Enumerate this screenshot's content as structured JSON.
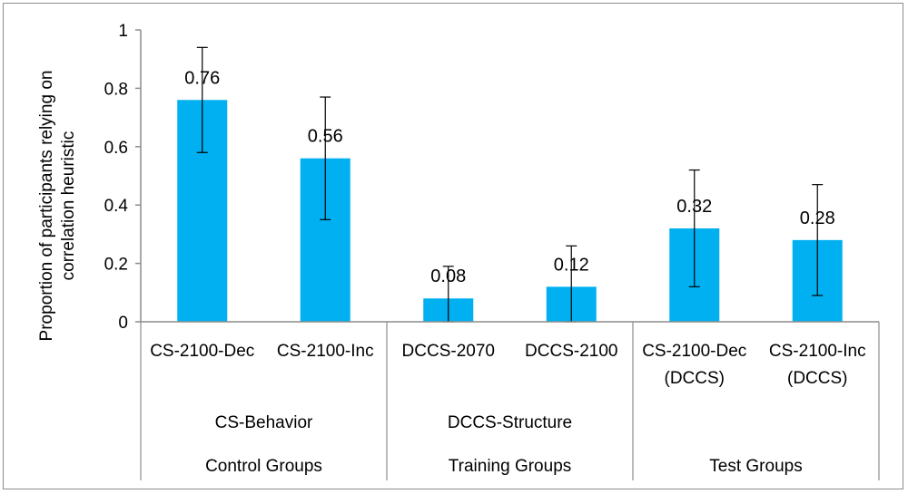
{
  "chart_data": {
    "type": "bar",
    "title": "",
    "ylabel": [
      "Proportion of participants  relying on",
      "correlation heuristic"
    ],
    "ylim": [
      0,
      1
    ],
    "yticks": [
      0,
      0.2,
      0.4,
      0.6,
      0.8,
      1
    ],
    "ytick_labels": [
      "0",
      "0.2",
      "0.4",
      "0.6",
      "0.8",
      "1"
    ],
    "grid": false,
    "bar_color": "#00b0f0",
    "bars": [
      {
        "label": [
          "CS-2100-Dec"
        ],
        "value": 0.76,
        "value_label": "0.76",
        "err_low": 0.58,
        "err_high": 0.94
      },
      {
        "label": [
          "CS-2100-Inc"
        ],
        "value": 0.56,
        "value_label": "0.56",
        "err_low": 0.35,
        "err_high": 0.77
      },
      {
        "label": [
          "DCCS-2070"
        ],
        "value": 0.08,
        "value_label": "0.08",
        "err_low": 0.0,
        "err_high": 0.19
      },
      {
        "label": [
          "DCCS-2100"
        ],
        "value": 0.12,
        "value_label": "0.12",
        "err_low": 0.0,
        "err_high": 0.26
      },
      {
        "label": [
          "CS-2100-Dec",
          "(DCCS)"
        ],
        "value": 0.32,
        "value_label": "0.32",
        "err_low": 0.12,
        "err_high": 0.52
      },
      {
        "label": [
          "CS-2100-Inc",
          "(DCCS)"
        ],
        "value": 0.28,
        "value_label": "0.28",
        "err_low": 0.09,
        "err_high": 0.47
      }
    ],
    "subgroups": [
      "CS-Behavior",
      "DCCS-Structure",
      ""
    ],
    "groups": [
      "Control Groups",
      "Training Groups",
      "Test Groups"
    ]
  }
}
